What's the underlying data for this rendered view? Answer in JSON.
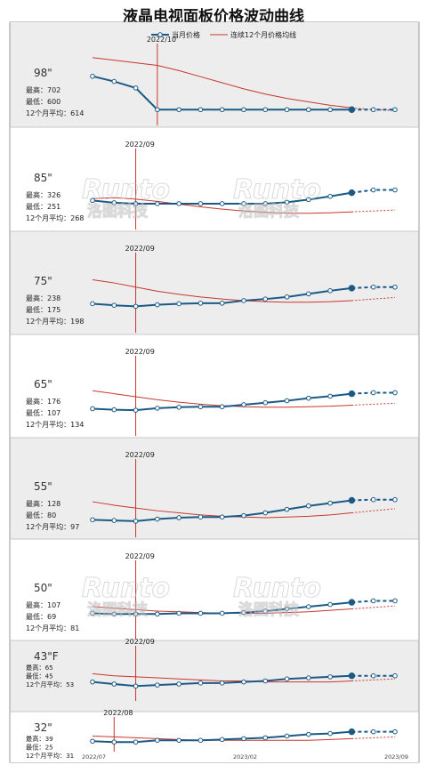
{
  "title": "液晶电视面板价格波动曲线",
  "legend": {
    "monthly_label": "当月价格",
    "avg_label": "连续12个月价格均线",
    "placement": "top"
  },
  "colors": {
    "monthly": "#1c5a86",
    "avg": "#c8372d",
    "panel_shaded": "#ededed",
    "panel_white": "#ffffff",
    "guide": "#c8372d"
  },
  "stat_labels": {
    "high": "最高：",
    "low": "最低：",
    "avg12": "12个月平均："
  },
  "watermark": {
    "text": "Runto",
    "cn": "洛图科技"
  },
  "x_axis_labels": [
    "2022/07",
    "2023/02",
    "2023/09"
  ],
  "chart_data": {
    "type": "line",
    "x": [
      "2022/07",
      "2022/08",
      "2022/09",
      "2022/10",
      "2022/11",
      "2022/12",
      "2023/01",
      "2023/02",
      "2023/03",
      "2023/04",
      "2023/05",
      "2023/06",
      "2023/07",
      "2023/08",
      "2023/09"
    ],
    "series_names": [
      "当月价格",
      "连续12个月价格均线"
    ],
    "forecast_start_index": 12,
    "panels": [
      {
        "size": "98\"",
        "high": "702",
        "low": "600",
        "avg12": "614",
        "marker_label": "2022/10",
        "marker_index": 3,
        "ylim": [
          580,
          740
        ],
        "monthly": [
          677,
          665,
          650,
          600,
          600,
          600,
          600,
          600,
          600,
          600,
          600,
          600,
          600,
          600,
          600
        ],
        "avg": [
          720,
          714,
          708,
          702,
          690,
          676,
          662,
          648,
          636,
          626,
          618,
          610,
          604,
          600,
          598
        ]
      },
      {
        "size": "85\"",
        "high": "326",
        "low": "251",
        "avg12": "268",
        "marker_label": "2022/09",
        "marker_index": 2,
        "ylim": [
          210,
          360
        ],
        "monthly": [
          258,
          253,
          251,
          251,
          251,
          251,
          251,
          251,
          251,
          254,
          260,
          267,
          275,
          281,
          281
        ],
        "avg": [
          262,
          264,
          261,
          256,
          250,
          244,
          239,
          235,
          232,
          230,
          230,
          231,
          233,
          235,
          237
        ]
      },
      {
        "size": "75\"",
        "high": "238",
        "low": "175",
        "avg12": "198",
        "marker_label": "2022/09",
        "marker_index": 2,
        "ylim": [
          140,
          270
        ],
        "monthly": [
          182,
          179,
          177,
          180,
          182,
          183,
          183,
          188,
          191,
          195,
          201,
          207,
          212,
          214,
          214
        ],
        "avg": [
          228,
          222,
          214,
          206,
          200,
          195,
          191,
          188,
          186,
          185,
          185,
          186,
          188,
          191,
          194
        ]
      },
      {
        "size": "65\"",
        "high": "176",
        "low": "107",
        "avg12": "134",
        "marker_label": "2022/09",
        "marker_index": 2,
        "ylim": [
          75,
          210
        ],
        "monthly": [
          115,
          113,
          112,
          116,
          118,
          119,
          119,
          123,
          127,
          131,
          136,
          140,
          145,
          147,
          147
        ],
        "avg": [
          151,
          145,
          139,
          133,
          128,
          124,
          121,
          119,
          118,
          118,
          119,
          120,
          122,
          124,
          126
        ]
      },
      {
        "size": "55\"",
        "high": "128",
        "low": "80",
        "avg12": "97",
        "marker_label": "2022/09",
        "marker_index": 2,
        "ylim": [
          60,
          155
        ],
        "monthly": [
          75,
          74,
          73,
          76,
          78,
          79,
          79,
          81,
          85,
          90,
          95,
          99,
          103,
          104,
          104
        ],
        "avg": [
          101,
          96,
          92,
          88,
          85,
          82,
          80,
          79,
          78,
          79,
          80,
          82,
          85,
          88,
          91
        ]
      },
      {
        "size": "50\"",
        "high": "107",
        "low": "69",
        "avg12": "81",
        "marker_label": "2022/09",
        "marker_index": 2,
        "ylim": [
          45,
          135
        ],
        "monthly": [
          70,
          69,
          69,
          69,
          70,
          70,
          70,
          71,
          73,
          76,
          79,
          82,
          85,
          87,
          87
        ],
        "avg": [
          79,
          77,
          75,
          73,
          72,
          71,
          70,
          70,
          70,
          71,
          72,
          74,
          76,
          78,
          80
        ]
      },
      {
        "size": "43\"F",
        "high": "65",
        "low": "45",
        "avg12": "53",
        "marker_label": "2022/09",
        "marker_index": 2,
        "ylim": [
          35,
          80
        ],
        "monthly": [
          50,
          48,
          46,
          47,
          48,
          49,
          49,
          50,
          51,
          53,
          54,
          55,
          56,
          56,
          56
        ],
        "avg": [
          58,
          56,
          55,
          54,
          53,
          52,
          51,
          51,
          50,
          50,
          50,
          50,
          51,
          52,
          53
        ]
      },
      {
        "size": "32\"",
        "high": "39",
        "low": "25",
        "avg12": "31",
        "marker_label": "2022/08",
        "marker_index": 1,
        "ylim": [
          18,
          48
        ],
        "monthly": [
          26,
          25,
          25,
          27,
          27,
          27,
          28,
          29,
          30,
          32,
          34,
          35,
          37,
          37,
          37
        ],
        "avg": [
          32,
          31,
          30,
          29,
          28,
          27,
          27,
          27,
          27,
          27,
          27,
          28,
          29,
          30,
          31
        ]
      }
    ]
  }
}
